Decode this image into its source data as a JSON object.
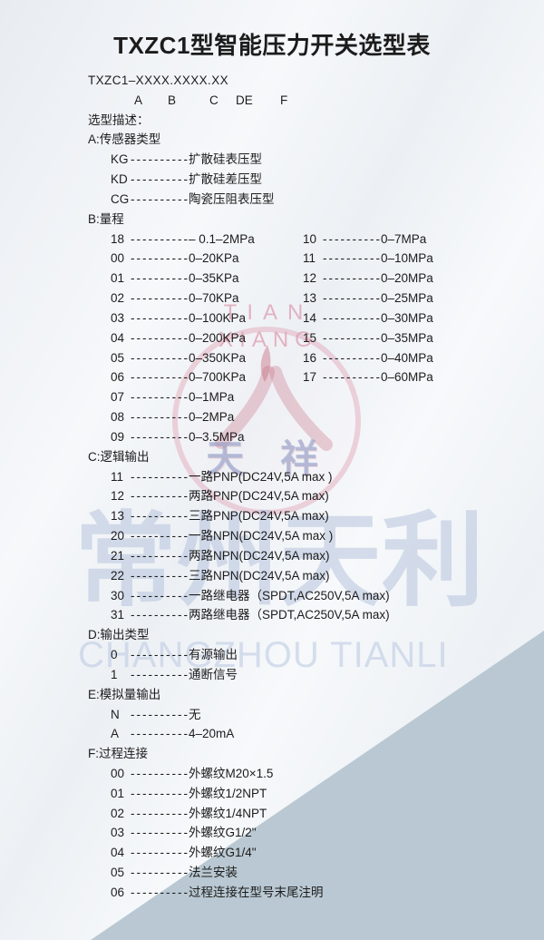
{
  "title": "TXZC1型智能压力开关选型表",
  "model_code": "TXZC1–XXXX.XXXX.XX",
  "model_letters": [
    "A",
    "B",
    "C",
    "DE",
    "F"
  ],
  "intro_label": "选型描述：",
  "dash_fill": "----------",
  "sections": [
    {
      "id": "A",
      "heading": "A:传感器类型",
      "items": [
        {
          "code": "KG",
          "label": "扩散硅表压型"
        },
        {
          "code": "KD",
          "label": "扩散硅差压型"
        },
        {
          "code": "CG",
          "label": "陶瓷压阻表压型"
        }
      ]
    },
    {
      "id": "B",
      "heading": "B:量程",
      "rows": [
        {
          "left": {
            "code": "18",
            "label": "– 0.1–2MPa"
          },
          "right": {
            "code": "10",
            "label": "0–7MPa"
          }
        },
        {
          "left": {
            "code": "00",
            "label": "0–20KPa"
          },
          "right": {
            "code": "11",
            "label": "0–10MPa"
          }
        },
        {
          "left": {
            "code": "01",
            "label": "0–35KPa"
          },
          "right": {
            "code": "12",
            "label": "0–20MPa"
          }
        },
        {
          "left": {
            "code": "02",
            "label": "0–70KPa"
          },
          "right": {
            "code": "13",
            "label": "0–25MPa"
          }
        },
        {
          "left": {
            "code": "03",
            "label": "0–100KPa"
          },
          "right": {
            "code": "14",
            "label": "0–30MPa"
          }
        },
        {
          "left": {
            "code": "04",
            "label": "0–200KPa"
          },
          "right": {
            "code": "15",
            "label": "0–35MPa"
          }
        },
        {
          "left": {
            "code": "05",
            "label": "0–350KPa"
          },
          "right": {
            "code": "16",
            "label": "0–40MPa"
          }
        },
        {
          "left": {
            "code": "06",
            "label": "0–700KPa"
          },
          "right": {
            "code": "17",
            "label": "0–60MPa"
          }
        },
        {
          "left": {
            "code": "07",
            "label": "0–1MPa"
          }
        },
        {
          "left": {
            "code": "08",
            "label": "0–2MPa"
          }
        },
        {
          "left": {
            "code": "09",
            "label": "0–3.5MPa"
          }
        }
      ]
    },
    {
      "id": "C",
      "heading": "C:逻辑输出",
      "items": [
        {
          "code": "11",
          "label": "一路PNP(DC24V,5A max )"
        },
        {
          "code": "12",
          "label": "两路PNP(DC24V,5A max)"
        },
        {
          "code": "13",
          "label": "三路PNP(DC24V,5A max)"
        },
        {
          "code": "20",
          "label": "一路NPN(DC24V,5A max )"
        },
        {
          "code": "21",
          "label": "两路NPN(DC24V,5A max)"
        },
        {
          "code": "22",
          "label": "三路NPN(DC24V,5A max)"
        },
        {
          "code": "30",
          "label": "一路继电器（SPDT,AC250V,5A max)"
        },
        {
          "code": "31",
          "label": "两路继电器（SPDT,AC250V,5A max)"
        }
      ]
    },
    {
      "id": "D",
      "heading": "D:输出类型",
      "items": [
        {
          "code": "0",
          "label": "有源输出"
        },
        {
          "code": "1",
          "label": "通断信号"
        }
      ]
    },
    {
      "id": "E",
      "heading": "E:模拟量输出",
      "items": [
        {
          "code": "N",
          "label": "无"
        },
        {
          "code": "A",
          "label": "4–20mA"
        }
      ]
    },
    {
      "id": "F",
      "heading": "F:过程连接",
      "items": [
        {
          "code": "00",
          "label": "外螺纹M20×1.5"
        },
        {
          "code": "01",
          "label": "外螺纹1/2NPT"
        },
        {
          "code": "02",
          "label": "外螺纹1/4NPT"
        },
        {
          "code": "03",
          "label": "外螺纹G1/2\""
        },
        {
          "code": "04",
          "label": "外螺纹G1/4\""
        },
        {
          "code": "05",
          "label": "法兰安装"
        },
        {
          "code": "06",
          "label": "过程连接在型号末尾注明"
        }
      ]
    }
  ],
  "watermark": {
    "logo_line1": "TIAN",
    "logo_line2": "XIANG",
    "logo_hanzi": "天 祥",
    "brand_hanzi": "常州天利",
    "brand_latin": "CHANGZHOU  TIANLI",
    "colors": {
      "logo_pink": "#dea0b2",
      "logo_red": "#c06a80",
      "watermark_blue": "#adbdd9",
      "corner_triangle": "#b9c8d2",
      "text": "#1c1c1c"
    }
  }
}
